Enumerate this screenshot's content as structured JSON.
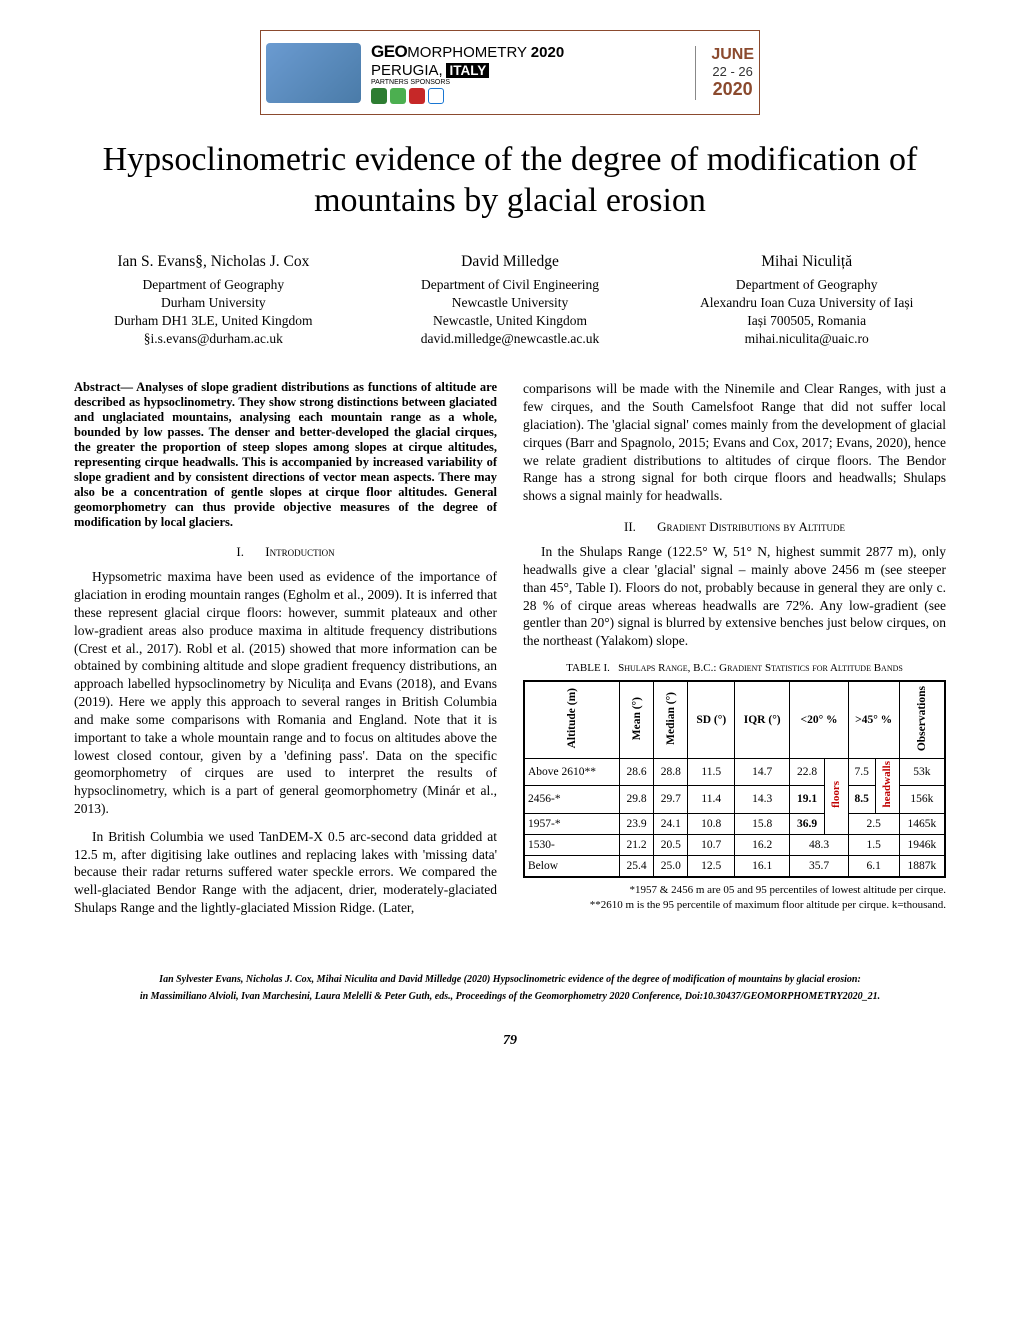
{
  "banner": {
    "geo": "GEO",
    "morph": "MORPHOMETRY",
    "year": "2020",
    "city": "PERUGIA,",
    "country": "ITALY",
    "partners": "PARTNERS SPONSORS",
    "month": "JUNE",
    "days": "22 - 26",
    "yyyy": "2020"
  },
  "title": "Hypsoclinometric evidence of the degree of modification of mountains by glacial erosion",
  "authors": [
    {
      "name": "Ian S. Evans§, Nicholas J. Cox",
      "dept": "Department of Geography",
      "uni": "Durham University",
      "addr": "Durham DH1 3LE, United Kingdom",
      "email": "§i.s.evans@durham.ac.uk"
    },
    {
      "name": "David Milledge",
      "dept": "Department of Civil Engineering",
      "uni": "Newcastle University",
      "addr": "Newcastle, United Kingdom",
      "email": "david.milledge@newcastle.ac.uk"
    },
    {
      "name": "Mihai Niculiță",
      "dept": "Department of Geography",
      "uni": "Alexandru Ioan Cuza University of Iași",
      "addr": "Iași 700505, Romania",
      "email": "mihai.niculita@uaic.ro"
    }
  ],
  "abstract": "Abstract— Analyses of slope gradient distributions as functions of altitude are described as hypsoclinometry. They show strong distinctions between glaciated and unglaciated mountains, analysing each mountain range as a whole, bounded by low passes. The denser and better-developed the glacial cirques, the greater the proportion of steep slopes among slopes at cirque altitudes, representing cirque headwalls. This is accompanied by increased variability of slope gradient and by consistent directions of vector mean aspects. There may also be a concentration of gentle slopes at cirque floor altitudes. General geomorphometry can thus provide objective measures of the degree of modification by local glaciers.",
  "sections": {
    "s1": {
      "num": "I.",
      "title": "Introduction"
    },
    "s2": {
      "num": "II.",
      "title": "Gradient Distributions by Altitude"
    }
  },
  "paragraphs": {
    "p1": "Hypsometric maxima have been used as evidence of the importance of glaciation in eroding mountain ranges (Egholm et al., 2009). It is inferred that these represent glacial cirque floors: however, summit plateaux and other low-gradient areas also produce maxima in altitude frequency distributions (Crest et al., 2017). Robl et al. (2015) showed that more information can be obtained by combining altitude and slope gradient frequency distributions, an approach labelled hypsoclinometry by Niculița and Evans (2018), and Evans (2019). Here we apply this approach to several ranges in British Columbia and make some comparisons with Romania and England. Note that it is important to take a whole mountain range and to focus on altitudes above the lowest closed contour, given by a 'defining pass'. Data on the specific geomorphometry of cirques are used to interpret the results of hypsoclinometry, which is a part of general geomorphometry (Minár et al., 2013).",
    "p2": "In British Columbia we used TanDEM-X 0.5 arc-second data gridded at 12.5 m, after digitising lake outlines and replacing lakes with 'missing data' because their radar returns suffered water speckle errors. We compared the well-glaciated Bendor Range with the adjacent, drier, moderately-glaciated Shulaps Range and the lightly-glaciated Mission Ridge. (Later,",
    "p3": "comparisons will be made with the Ninemile and Clear Ranges, with just a few cirques, and the South Camelsfoot Range that did not suffer local glaciation). The 'glacial signal' comes mainly from the development of glacial cirques (Barr and Spagnolo, 2015; Evans and Cox, 2017; Evans, 2020), hence we relate gradient distributions to altitudes of cirque floors. The Bendor Range has a strong signal for both cirque floors and headwalls; Shulaps shows a signal mainly for headwalls.",
    "p4": "In the Shulaps Range (122.5° W, 51° N, highest summit 2877 m), only headwalls give a clear 'glacial' signal – mainly above 2456 m (see steeper than 45°, Table I). Floors do not, probably because in general they are only c. 28 % of cirque areas whereas headwalls are 72%. Any low-gradient (see gentler than 20°) signal is blurred by extensive benches just below cirques, on the northeast (Yalakom) slope."
  },
  "table": {
    "caption_label": "TABLE I.",
    "caption_text": "Shulaps Range, B.C.: Gradient Statistics for Altitude Bands",
    "headers": {
      "alt": "Altitude (m)",
      "mean": "Mean (°)",
      "median": "Median (°)",
      "sd": "SD (°)",
      "iqr": "IQR (°)",
      "lt20": "<20° %",
      "gt45": ">45° %",
      "obs": "Observations"
    },
    "annotations": {
      "floors": "floors",
      "headwalls": "headwalls"
    },
    "rows": [
      {
        "alt": "Above 2610**",
        "mean": "28.6",
        "median": "28.8",
        "sd": "11.5",
        "iqr": "14.7",
        "lt20": "22.8",
        "gt45": "7.5",
        "obs": "53k"
      },
      {
        "alt": "2456-*",
        "mean": "29.8",
        "median": "29.7",
        "sd": "11.4",
        "iqr": "14.3",
        "lt20": "19.1",
        "gt45": "8.5",
        "obs": "156k"
      },
      {
        "alt": "1957-*",
        "mean": "23.9",
        "median": "24.1",
        "sd": "10.8",
        "iqr": "15.8",
        "lt20": "36.9",
        "gt45": "2.5",
        "obs": "1465k"
      },
      {
        "alt": "1530-",
        "mean": "21.2",
        "median": "20.5",
        "sd": "10.7",
        "iqr": "16.2",
        "lt20": "48.3",
        "gt45": "1.5",
        "obs": "1946k"
      },
      {
        "alt": "Below",
        "mean": "25.4",
        "median": "25.0",
        "sd": "12.5",
        "iqr": "16.1",
        "lt20": "35.7",
        "gt45": "6.1",
        "obs": "1887k"
      }
    ],
    "footnote1": "*1957 & 2456 m are 05 and 95 percentiles of lowest altitude per cirque.",
    "footnote2": "**2610 m is the 95 percentile of maximum floor altitude per cirque. k=thousand."
  },
  "citation": {
    "line1": "Ian Sylvester Evans, Nicholas J. Cox, Mihai Niculita and David Milledge (2020) Hypsoclinometric evidence of the degree of modification of mountains by glacial erosion:",
    "line2": "in Massimiliano Alvioli, Ivan Marchesini, Laura Melelli & Peter Guth, eds., Proceedings of the Geomorphometry 2020 Conference, Doi:10.30437/GEOMORPHOMETRY2020_21."
  },
  "pagenum": "79"
}
